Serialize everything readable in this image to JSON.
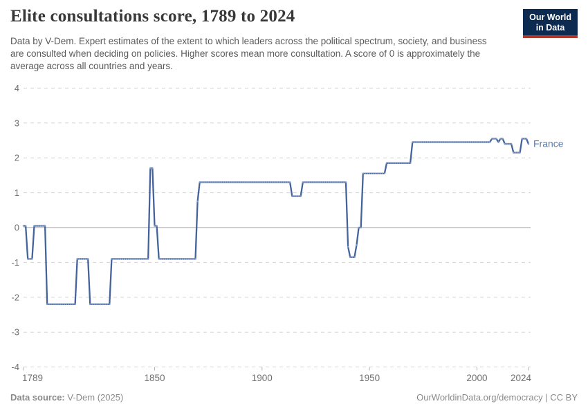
{
  "header": {
    "title": "Elite consultations score, 1789 to 2024",
    "subtitle": "Data by V-Dem. Expert estimates of the extent to which leaders across the political spectrum, society, and business are consulted when deciding on policies. Higher scores mean more consultation. A score of 0 is approximately the average across all countries and years.",
    "logo": {
      "line1": "Our World",
      "line2": "in Data"
    }
  },
  "chart_data": {
    "type": "line",
    "title": "Elite consultations score, 1789 to 2024",
    "xlabel": "",
    "ylabel": "",
    "xlim": [
      1789,
      2024
    ],
    "ylim": [
      -4,
      4
    ],
    "x_ticks": [
      1789,
      1850,
      1900,
      1950,
      2000,
      2024
    ],
    "y_ticks": [
      4,
      3,
      2,
      1,
      0,
      -1,
      -2,
      -3,
      -4
    ],
    "grid": "horizontal-dashed, solid zero line, no vertical gridlines",
    "legend_position": "inline label at end of line",
    "series": [
      {
        "name": "France",
        "note": "segments are [start_year, end_year, value]; annual data points",
        "segments": [
          [
            1789,
            1790,
            0.05
          ],
          [
            1791,
            1793,
            -0.9
          ],
          [
            1794,
            1799,
            0.05
          ],
          [
            1800,
            1813,
            -2.2
          ],
          [
            1814,
            1819,
            -0.9
          ],
          [
            1820,
            1829,
            -2.2
          ],
          [
            1830,
            1847,
            -0.9
          ],
          [
            1848,
            1849,
            1.7
          ],
          [
            1850,
            1851,
            0.05
          ],
          [
            1852,
            1869,
            -0.9
          ],
          [
            1870,
            1870,
            0.75
          ],
          [
            1871,
            1913,
            1.3
          ],
          [
            1914,
            1918,
            0.9
          ],
          [
            1919,
            1939,
            1.3
          ],
          [
            1940,
            1940,
            -0.55
          ],
          [
            1941,
            1943,
            -0.85
          ],
          [
            1944,
            1944,
            -0.5
          ],
          [
            1945,
            1946,
            0.0
          ],
          [
            1947,
            1957,
            1.55
          ],
          [
            1958,
            1969,
            1.85
          ],
          [
            1970,
            2006,
            2.45
          ],
          [
            2007,
            2009,
            2.55
          ],
          [
            2010,
            2010,
            2.45
          ],
          [
            2011,
            2012,
            2.55
          ],
          [
            2013,
            2016,
            2.4
          ],
          [
            2017,
            2020,
            2.15
          ],
          [
            2021,
            2023,
            2.55
          ],
          [
            2024,
            2024,
            2.4
          ]
        ]
      }
    ],
    "colors": {
      "line": "#44639B",
      "marker": "#8099C5",
      "label": "#5B79AE",
      "grid": "#D4D4D4",
      "zero_line": "#9E9E9E",
      "tick_text": "#6E6E6E",
      "tick_mark": "#B5B5B5"
    }
  },
  "colors": {
    "logo_bg": "#0D2A50",
    "logo_red": "#B0392C",
    "title_text": "#383838",
    "subtitle_text": "#5A5A5A",
    "footer_text": "#8A8A8A"
  },
  "footer": {
    "source_label": "Data source:",
    "source_value": " V-Dem (2025)",
    "credit": "OurWorldinData.org/democracy | CC BY"
  }
}
